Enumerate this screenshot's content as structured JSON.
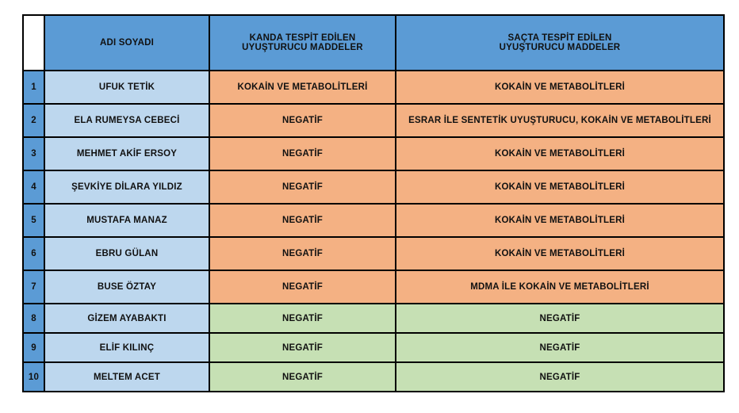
{
  "palette": {
    "header_blue": "#5B9BD5",
    "index_blue": "#5B9BD5",
    "name_light_blue": "#BDD7EE",
    "positive_row_orange": "#F4B183",
    "negative_row_green": "#C6E0B4",
    "border": "#000000"
  },
  "table": {
    "headers": {
      "index": "",
      "name": "ADI SOYADI",
      "blood": "KANDA TESPİT EDİLEN\nUYUŞTURUCU MADDELER",
      "hair": "SAÇTA TESPİT EDİLEN\nUYUŞTURUCU MADDELER"
    },
    "rows": [
      {
        "no": "1",
        "name": "UFUK TETİK",
        "blood": "KOKAİN VE METABOLİTLERİ",
        "hair": "KOKAİN VE METABOLİTLERİ",
        "color": "orange"
      },
      {
        "no": "2",
        "name": "ELA RUMEYSA CEBECİ",
        "blood": "NEGATİF",
        "hair": "ESRAR İLE SENTETİK UYUŞTURUCU, KOKAİN VE METABOLİTLERİ",
        "color": "orange"
      },
      {
        "no": "3",
        "name": "MEHMET AKİF ERSOY",
        "blood": "NEGATİF",
        "hair": "KOKAİN VE METABOLİTLERİ",
        "color": "orange"
      },
      {
        "no": "4",
        "name": "ŞEVKİYE DİLARA YILDIZ",
        "blood": "NEGATİF",
        "hair": "KOKAİN VE METABOLİTLERİ",
        "color": "orange"
      },
      {
        "no": "5",
        "name": "MUSTAFA MANAZ",
        "blood": "NEGATİF",
        "hair": "KOKAİN VE METABOLİTLERİ",
        "color": "orange"
      },
      {
        "no": "6",
        "name": "EBRU GÜLAN",
        "blood": "NEGATİF",
        "hair": "KOKAİN VE METABOLİTLERİ",
        "color": "orange"
      },
      {
        "no": "7",
        "name": "BUSE ÖZTAY",
        "blood": "NEGATİF",
        "hair": "MDMA İLE KOKAİN VE METABOLİTLERİ",
        "color": "orange"
      },
      {
        "no": "8",
        "name": "GİZEM AYABAKTI",
        "blood": "NEGATİF",
        "hair": "NEGATİF",
        "color": "green"
      },
      {
        "no": "9",
        "name": "ELİF KILINÇ",
        "blood": "NEGATİF",
        "hair": "NEGATİF",
        "color": "green"
      },
      {
        "no": "10",
        "name": "MELTEM ACET",
        "blood": "NEGATİF",
        "hair": "NEGATİF",
        "color": "green"
      }
    ]
  }
}
